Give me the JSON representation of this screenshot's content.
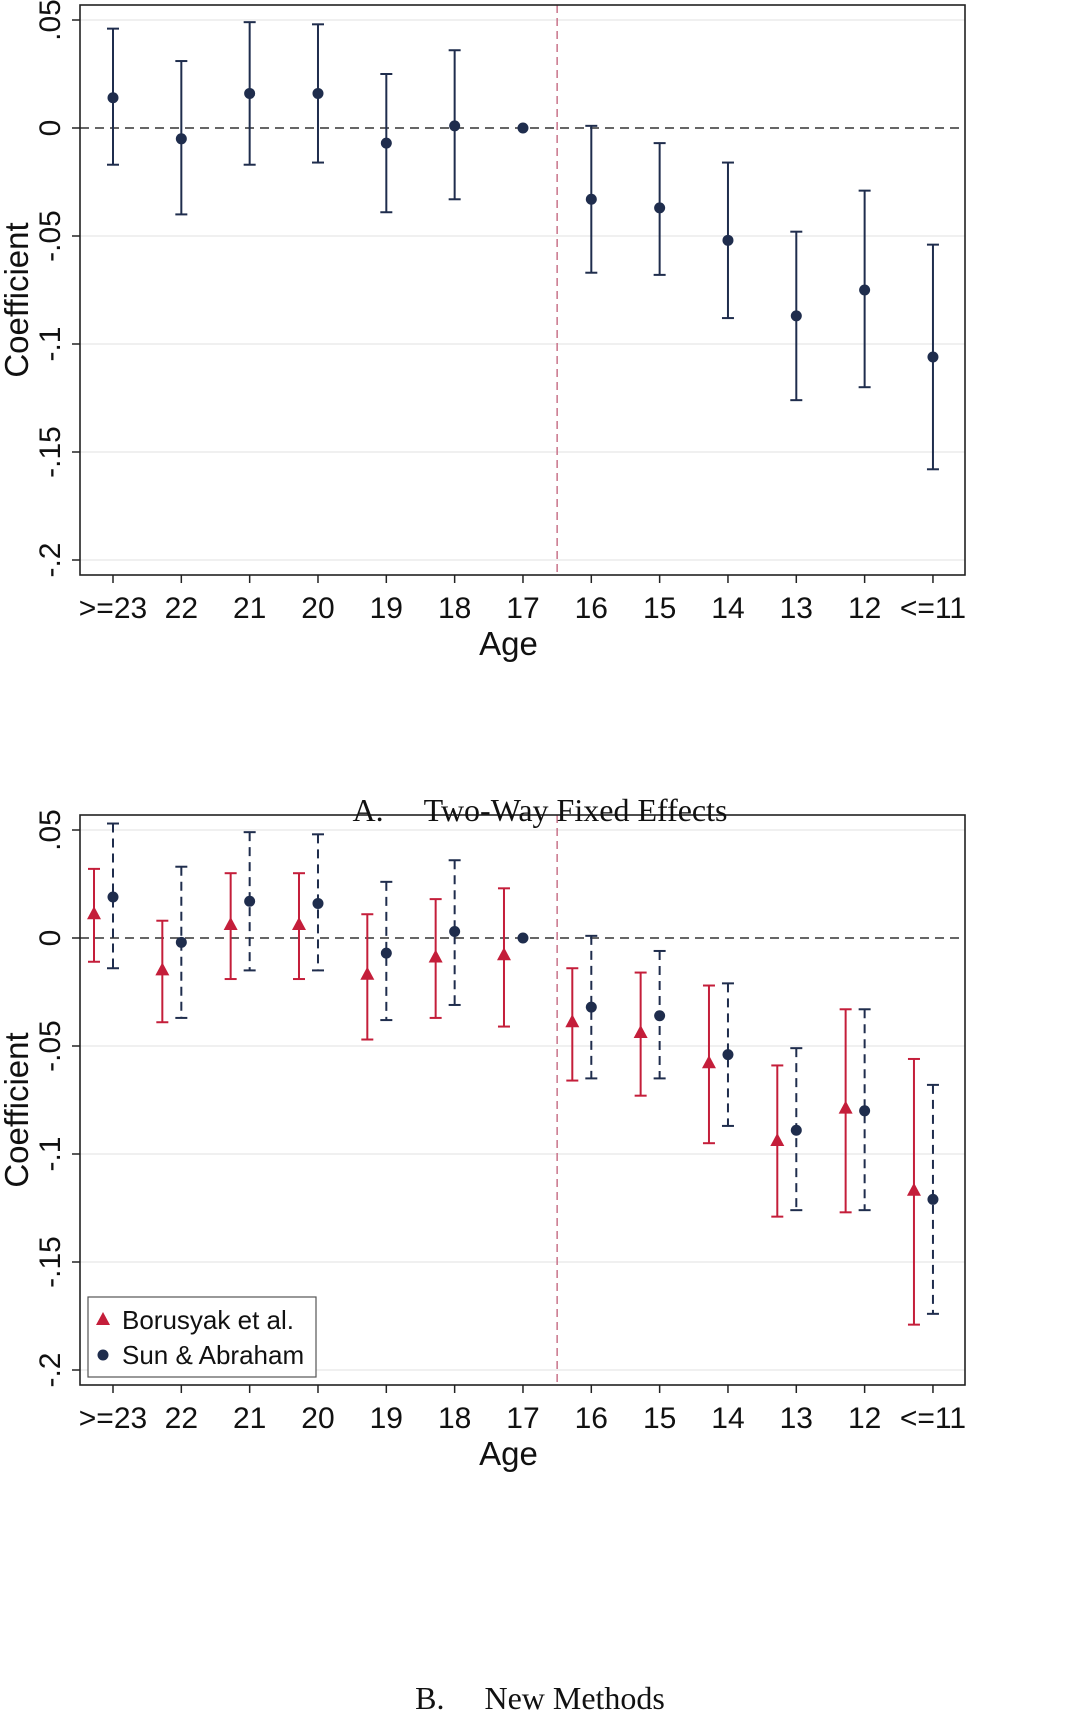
{
  "colors": {
    "navy": "#1f2d4d",
    "red": "#c41e3a",
    "gridline": "#e6e6e6",
    "axis": "#222222"
  },
  "chart_data": [
    {
      "type": "scatter",
      "caption_label": "A.",
      "caption_text": "Two-Way Fixed Effects",
      "xlabel": "Age",
      "ylabel": "Coefficient",
      "ylim": [
        -0.2,
        0.05
      ],
      "yticks": [
        0.05,
        0,
        -0.05,
        -0.1,
        -0.15,
        -0.2
      ],
      "ytick_labels": [
        ".05",
        "0",
        "-.05",
        "-.1",
        "-.15",
        "-.2"
      ],
      "categories": [
        ">=23",
        "22",
        "21",
        "20",
        "19",
        "18",
        "17",
        "16",
        "15",
        "14",
        "13",
        "12",
        "<=11"
      ],
      "event_line_between": [
        "17",
        "16"
      ],
      "zero_line": true,
      "series": [
        {
          "marker": "circle",
          "ci_style": "solid",
          "values": [
            0.014,
            -0.005,
            0.016,
            0.016,
            -0.007,
            0.001,
            0.0,
            -0.033,
            -0.037,
            -0.052,
            -0.087,
            -0.075,
            -0.106
          ],
          "ci_low": [
            -0.017,
            -0.04,
            -0.017,
            -0.016,
            -0.039,
            -0.033,
            0.0,
            -0.067,
            -0.068,
            -0.088,
            -0.126,
            -0.12,
            -0.158
          ],
          "ci_high": [
            0.046,
            0.031,
            0.049,
            0.048,
            0.025,
            0.036,
            0.0,
            0.001,
            -0.007,
            -0.016,
            -0.048,
            -0.029,
            -0.054
          ]
        }
      ]
    },
    {
      "type": "scatter",
      "caption_label": "B.",
      "caption_text": "New Methods",
      "xlabel": "Age",
      "ylabel": "Coefficient",
      "ylim": [
        -0.2,
        0.05
      ],
      "yticks": [
        0.05,
        0,
        -0.05,
        -0.1,
        -0.15,
        -0.2
      ],
      "ytick_labels": [
        ".05",
        "0",
        "-.05",
        "-.1",
        "-.15",
        "-.2"
      ],
      "categories": [
        ">=23",
        "22",
        "21",
        "20",
        "19",
        "18",
        "17",
        "16",
        "15",
        "14",
        "13",
        "12",
        "<=11"
      ],
      "event_line_between": [
        "17",
        "16"
      ],
      "zero_line": true,
      "legend_position": "bottom-left",
      "series": [
        {
          "name": "Borusyak et al.",
          "marker": "triangle",
          "ci_style": "solid",
          "values": [
            0.011,
            -0.015,
            0.006,
            0.006,
            -0.017,
            -0.009,
            -0.008,
            -0.039,
            -0.044,
            -0.058,
            -0.094,
            -0.079,
            -0.117
          ],
          "ci_low": [
            -0.011,
            -0.039,
            -0.019,
            -0.019,
            -0.047,
            -0.037,
            -0.041,
            -0.066,
            -0.073,
            -0.095,
            -0.129,
            -0.127,
            -0.179
          ],
          "ci_high": [
            0.032,
            0.008,
            0.03,
            0.03,
            0.011,
            0.018,
            0.023,
            -0.014,
            -0.016,
            -0.022,
            -0.059,
            -0.033,
            -0.056
          ]
        },
        {
          "name": "Sun & Abraham",
          "marker": "circle",
          "ci_style": "dashed",
          "values": [
            0.019,
            -0.002,
            0.017,
            0.016,
            -0.007,
            0.003,
            0.0,
            -0.032,
            -0.036,
            -0.054,
            -0.089,
            -0.08,
            -0.121
          ],
          "ci_low": [
            -0.014,
            -0.037,
            -0.015,
            -0.015,
            -0.038,
            -0.031,
            0.0,
            -0.065,
            -0.065,
            -0.087,
            -0.126,
            -0.126,
            -0.174
          ],
          "ci_high": [
            0.053,
            0.033,
            0.049,
            0.048,
            0.026,
            0.036,
            0.0,
            0.001,
            -0.006,
            -0.021,
            -0.051,
            -0.033,
            -0.068
          ]
        }
      ]
    }
  ]
}
